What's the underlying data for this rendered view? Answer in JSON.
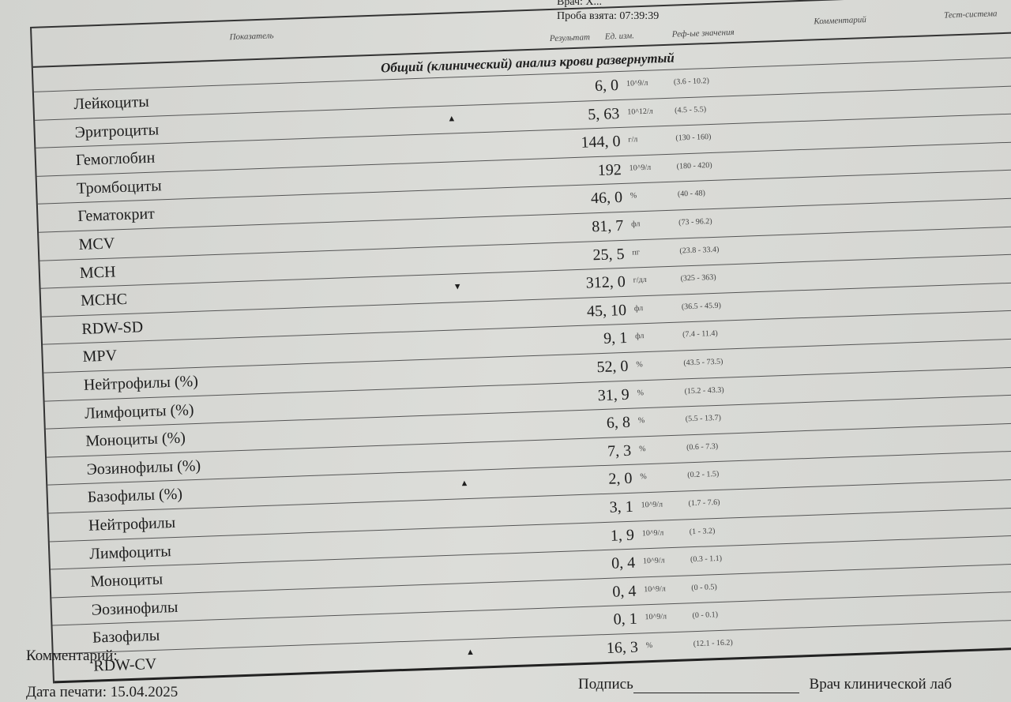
{
  "header": {
    "doctor_label": "Врач: Х...",
    "sample_taken": "Проба взята: 07:39:39"
  },
  "columns": {
    "indicator": "Показатель",
    "result": "Результат",
    "unit": "Ед. изм.",
    "reference": "Реф-ые значения",
    "comment": "Комментарий",
    "test_system": "Тест-система"
  },
  "section_title": "Общий (клинический) анализ крови развернутый",
  "rows": [
    {
      "name": "Лейкоциты",
      "flag": "",
      "value": "6, 0",
      "unit": "10^9/л",
      "ref": "(3.6 - 10.2)"
    },
    {
      "name": "Эритроциты",
      "flag": "▲",
      "value": "5, 63",
      "unit": "10^12/л",
      "ref": "(4.5 - 5.5)"
    },
    {
      "name": "Гемоглобин",
      "flag": "",
      "value": "144, 0",
      "unit": "г/л",
      "ref": "(130 - 160)"
    },
    {
      "name": "Тромбоциты",
      "flag": "",
      "value": "192",
      "unit": "10^9/л",
      "ref": "(180 - 420)"
    },
    {
      "name": "Гематокрит",
      "flag": "",
      "value": "46, 0",
      "unit": "%",
      "ref": "(40 - 48)"
    },
    {
      "name": "MCV",
      "flag": "",
      "value": "81, 7",
      "unit": "фл",
      "ref": "(73 - 96.2)"
    },
    {
      "name": "MCH",
      "flag": "",
      "value": "25, 5",
      "unit": "пг",
      "ref": "(23.8 - 33.4)"
    },
    {
      "name": "MCHC",
      "flag": "▼",
      "value": "312, 0",
      "unit": "г/дл",
      "ref": "(325 - 363)"
    },
    {
      "name": "RDW-SD",
      "flag": "",
      "value": "45, 10",
      "unit": "фл",
      "ref": "(36.5 - 45.9)"
    },
    {
      "name": "MPV",
      "flag": "",
      "value": "9, 1",
      "unit": "фл",
      "ref": "(7.4 - 11.4)"
    },
    {
      "name": "Нейтрофилы (%)",
      "flag": "",
      "value": "52, 0",
      "unit": "%",
      "ref": "(43.5 - 73.5)"
    },
    {
      "name": "Лимфоциты (%)",
      "flag": "",
      "value": "31, 9",
      "unit": "%",
      "ref": "(15.2 - 43.3)"
    },
    {
      "name": "Моноциты (%)",
      "flag": "",
      "value": "6, 8",
      "unit": "%",
      "ref": "(5.5 - 13.7)"
    },
    {
      "name": "Эозинофилы (%)",
      "flag": "",
      "value": "7, 3",
      "unit": "%",
      "ref": "(0.6 - 7.3)"
    },
    {
      "name": "Базофилы (%)",
      "flag": "▲",
      "value": "2, 0",
      "unit": "%",
      "ref": "(0.2 - 1.5)"
    },
    {
      "name": "Нейтрофилы",
      "flag": "",
      "value": "3, 1",
      "unit": "10^9/л",
      "ref": "(1.7 - 7.6)"
    },
    {
      "name": "Лимфоциты",
      "flag": "",
      "value": "1, 9",
      "unit": "10^9/л",
      "ref": "(1 - 3.2)"
    },
    {
      "name": "Моноциты",
      "flag": "",
      "value": "0, 4",
      "unit": "10^9/л",
      "ref": "(0.3 - 1.1)"
    },
    {
      "name": "Эозинофилы",
      "flag": "",
      "value": "0, 4",
      "unit": "10^9/л",
      "ref": "(0 - 0.5)"
    },
    {
      "name": "Базофилы",
      "flag": "",
      "value": "0, 1",
      "unit": "10^9/л",
      "ref": "(0 - 0.1)"
    },
    {
      "name": "RDW-CV",
      "flag": "▲",
      "value": "16, 3",
      "unit": "%",
      "ref": "(12.1 - 16.2)"
    }
  ],
  "footer": {
    "comment_label": "Комментарий:",
    "print_date": "Дата печати: 15.04.2025",
    "signature_label": "Подпись",
    "doctor_title": "Врач клинической лаб"
  }
}
